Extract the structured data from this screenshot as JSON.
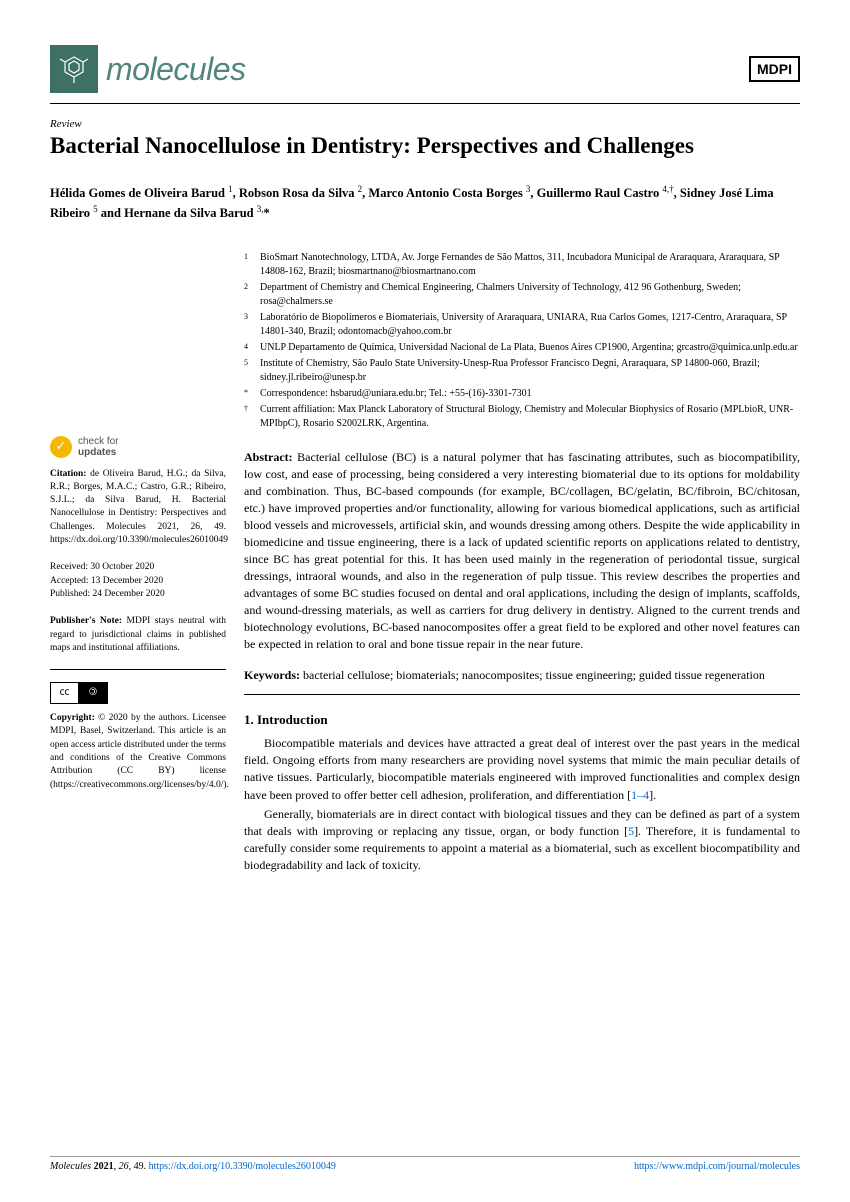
{
  "header": {
    "journal_name": "molecules",
    "publisher_badge": "MDPI"
  },
  "article": {
    "type": "Review",
    "title": "Bacterial Nanocellulose in Dentistry: Perspectives and Challenges",
    "authors_html": "Hélida Gomes de Oliveira Barud ¹, Robson Rosa da Silva ², Marco Antonio Costa Borges ³, Guillermo Raul Castro ⁴,†, Sidney José Lima Ribeiro ⁵ and Hernane da Silva Barud ³,*"
  },
  "affiliations": [
    {
      "n": "1",
      "text": "BioSmart Nanotechnology, LTDA, Av. Jorge Fernandes de São Mattos, 311, Incubadora Municipal de Araraquara, Araraquara, SP 14808-162, Brazil; biosmartnano@biosmartnano.com"
    },
    {
      "n": "2",
      "text": "Department of Chemistry and Chemical Engineering, Chalmers University of Technology, 412 96 Gothenburg, Sweden; rosa@chalmers.se"
    },
    {
      "n": "3",
      "text": "Laboratório de Biopolímeros e Biomateriais, University of Araraquara, UNIARA, Rua Carlos Gomes, 1217-Centro, Araraquara, SP 14801-340, Brazil; odontomacb@yahoo.com.br"
    },
    {
      "n": "4",
      "text": "UNLP Departamento de Química, Universidad Nacional de La Plata, Buenos Aires CP1900, Argentina; grcastro@quimica.unlp.edu.ar"
    },
    {
      "n": "5",
      "text": "Institute of Chemistry, São Paulo State University-Unesp-Rua Professor Francisco Degni, Araraquara, SP 14800-060, Brazil; sidney.jl.ribeiro@unesp.br"
    },
    {
      "n": "*",
      "text": "Correspondence: hsbarud@uniara.edu.br; Tel.: +55-(16)-3301-7301"
    },
    {
      "n": "†",
      "text": "Current affiliation: Max Planck Laboratory of Structural Biology, Chemistry and Molecular Biophysics of Rosario (MPLbioR, UNR-MPIbpC), Rosario S2002LRK, Argentina."
    }
  ],
  "abstract": {
    "label": "Abstract:",
    "text": "Bacterial cellulose (BC) is a natural polymer that has fascinating attributes, such as biocompatibility, low cost, and ease of processing, being considered a very interesting biomaterial due to its options for moldability and combination. Thus, BC-based compounds (for example, BC/collagen, BC/gelatin, BC/fibroin, BC/chitosan, etc.) have improved properties and/or functionality, allowing for various biomedical applications, such as artificial blood vessels and microvessels, artificial skin, and wounds dressing among others. Despite the wide applicability in biomedicine and tissue engineering, there is a lack of updated scientific reports on applications related to dentistry, since BC has great potential for this. It has been used mainly in the regeneration of periodontal tissue, surgical dressings, intraoral wounds, and also in the regeneration of pulp tissue. This review describes the properties and advantages of some BC studies focused on dental and oral applications, including the design of implants, scaffolds, and wound-dressing materials, as well as carriers for drug delivery in dentistry. Aligned to the current trends and biotechnology evolutions, BC-based nanocomposites offer a great field to be explored and other novel features can be expected in relation to oral and bone tissue repair in the near future."
  },
  "keywords": {
    "label": "Keywords:",
    "text": "bacterial cellulose; biomaterials; nanocomposites; tissue engineering; guided tissue regeneration"
  },
  "intro": {
    "heading": "1. Introduction",
    "p1": "Biocompatible materials and devices have attracted a great deal of interest over the past years in the medical field. Ongoing efforts from many researchers are providing novel systems that mimic the main peculiar details of native tissues. Particularly, biocompatible materials engineered with improved functionalities and complex design have been proved to offer better cell adhesion, proliferation, and differentiation [",
    "p1_ref": "1–4",
    "p1_end": "].",
    "p2": "Generally, biomaterials are in direct contact with biological tissues and they can be defined as part of a system that deals with improving or replacing any tissue, organ, or body function [",
    "p2_ref": "5",
    "p2_end": "]. Therefore, it is fundamental to carefully consider some requirements to appoint a material as a biomaterial, such as excellent biocompatibility and biodegradability and lack of toxicity."
  },
  "sidebar": {
    "check_label": "check for",
    "check_label2": "updates",
    "citation_label": "Citation:",
    "citation": "de Oliveira Barud, H.G.; da Silva, R.R.; Borges, M.A.C.; Castro, G.R.; Ribeiro, S.J.L.; da Silva Barud, H. Bacterial Nanocellulose in Dentistry: Perspectives and Challenges. Molecules 2021, 26, 49. https://dx.doi.org/10.3390/molecules26010049",
    "received": "Received: 30 October 2020",
    "accepted": "Accepted: 13 December 2020",
    "published": "Published: 24 December 2020",
    "pubnote_label": "Publisher's Note:",
    "pubnote": "MDPI stays neutral with regard to jurisdictional claims in published maps and institutional affiliations.",
    "copyright_label": "Copyright:",
    "copyright": "© 2020 by the authors. Licensee MDPI, Basel, Switzerland. This article is an open access article distributed under the terms and conditions of the Creative Commons Attribution (CC BY) license (https://creativecommons.org/licenses/by/4.0/)."
  },
  "footer": {
    "left": "Molecules 2021, 26, 49. https://dx.doi.org/10.3390/molecules26010049",
    "right": "https://www.mdpi.com/journal/molecules"
  },
  "colors": {
    "teal": "#3e7066",
    "teal_text": "#51847a",
    "link": "#0066cc",
    "yellow": "#f5b800"
  }
}
